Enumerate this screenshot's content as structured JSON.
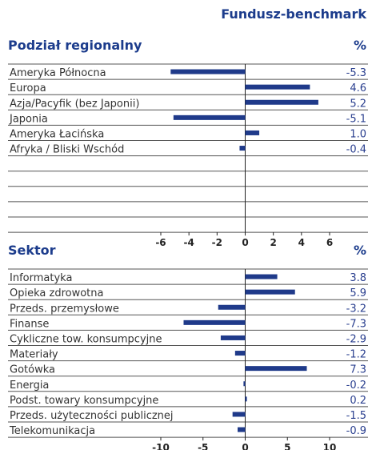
{
  "header": "Fundusz-benchmark",
  "chart_data": [
    {
      "type": "barh",
      "title": "Podział regionalny",
      "unit_label": "%",
      "color": "#1f3a8a",
      "categories": [
        "Ameryka Północna",
        "Europa",
        "Azja/Pacyfik (bez Japonii)",
        "Japonia",
        "Ameryka Łacińska",
        "Afryka / Bliski Wschód"
      ],
      "values": [
        -5.3,
        4.6,
        5.2,
        -5.1,
        1.0,
        -0.4
      ],
      "value_labels": [
        "-5.3",
        "4.6",
        "5.2",
        "-5.1",
        "1.0",
        "-0.4"
      ],
      "xlim": [
        -6,
        6
      ],
      "xticks": [
        -6,
        -4,
        -2,
        0,
        2,
        4,
        6
      ]
    },
    {
      "type": "barh",
      "title": "Sektor",
      "unit_label": "%",
      "color": "#1f3a8a",
      "categories": [
        "Informatyka",
        "Opieka zdrowotna",
        "Przeds. przemysłowe",
        "Finanse",
        "Cykliczne tow. konsumpcyjne",
        "Materiały",
        "Gotówka",
        "Energia",
        "Podst. towary konsumpcyjne",
        "Przeds. użyteczności publicznej",
        "Telekomunikacja"
      ],
      "values": [
        3.8,
        5.9,
        -3.2,
        -7.3,
        -2.9,
        -1.2,
        7.3,
        -0.2,
        0.2,
        -1.5,
        -0.9
      ],
      "value_labels": [
        "3.8",
        "5.9",
        "-3.2",
        "-7.3",
        "-2.9",
        "-1.2",
        "7.3",
        "-0.2",
        "0.2",
        "-1.5",
        "-0.9"
      ],
      "xlim": [
        -10,
        10
      ],
      "xticks": [
        -10,
        -5,
        0,
        5,
        10
      ]
    }
  ]
}
